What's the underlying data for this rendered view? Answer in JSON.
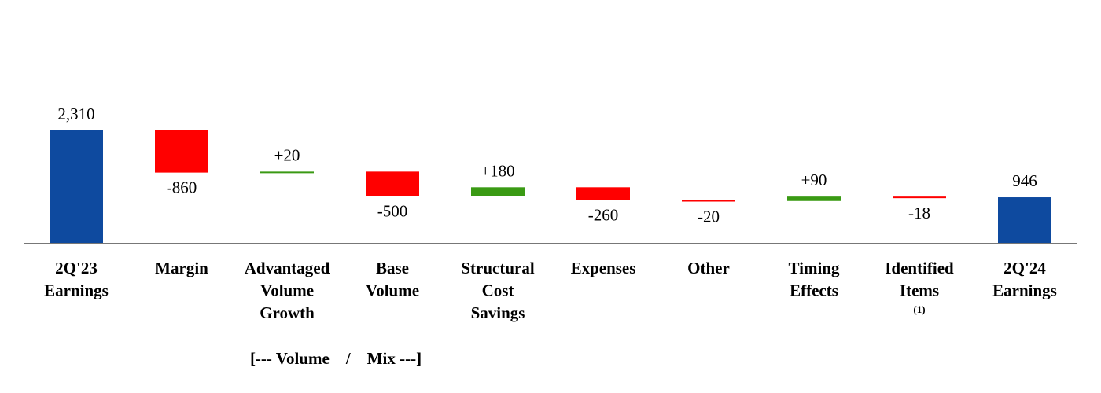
{
  "chart_data": {
    "type": "waterfall",
    "categories": [
      [
        "2Q'23",
        "Earnings"
      ],
      [
        "Margin"
      ],
      [
        "Advantaged",
        "Volume",
        "Growth"
      ],
      [
        "Base",
        "Volume"
      ],
      [
        "Structural",
        "Cost",
        "Savings"
      ],
      [
        "Expenses"
      ],
      [
        "Other"
      ],
      [
        "Timing",
        "Effects"
      ],
      [
        "Identified",
        "Items"
      ],
      [
        "2Q'24",
        "Earnings"
      ]
    ],
    "category_notes": [
      null,
      null,
      null,
      null,
      null,
      null,
      null,
      null,
      "(1)",
      null
    ],
    "measures": [
      "total",
      "relative",
      "relative",
      "relative",
      "relative",
      "relative",
      "relative",
      "relative",
      "relative",
      "total"
    ],
    "values": [
      2310,
      -860,
      20,
      -500,
      180,
      -260,
      -20,
      90,
      -18,
      946
    ],
    "value_labels": [
      "2,310",
      "-860",
      "+20",
      "-500",
      "+180",
      "-260",
      "-20",
      "+90",
      "-18",
      "946"
    ],
    "colors": {
      "total": "#0e4a9f",
      "increase": "#3a9a14",
      "decrease": "#ff0000"
    },
    "annotation": "[--- Volume    /    Mix ---]"
  }
}
